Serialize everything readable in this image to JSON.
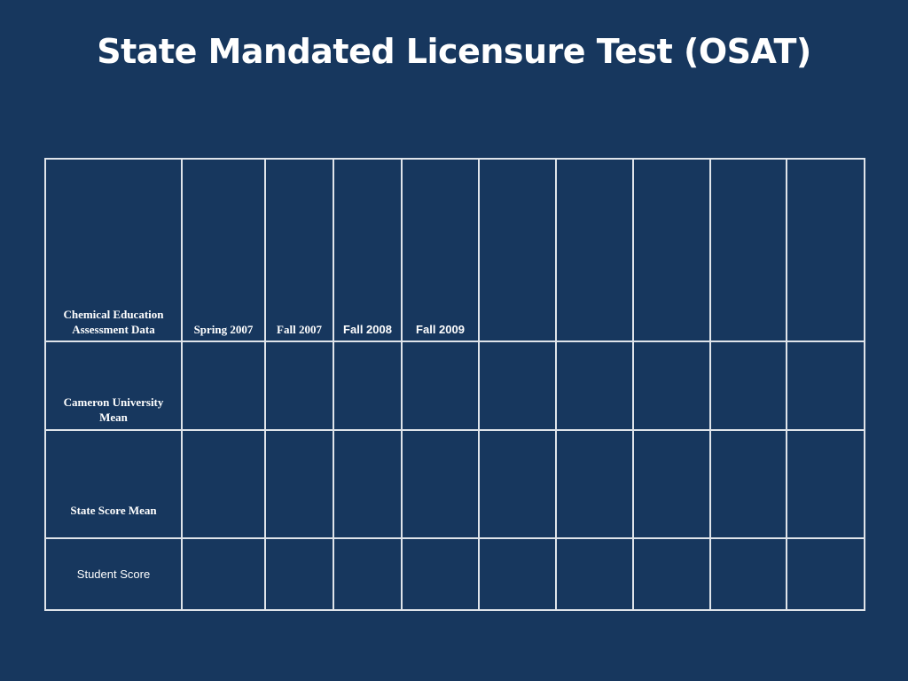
{
  "slide": {
    "title": "State Mandated Licensure Test (OSAT)"
  },
  "table": {
    "header": {
      "label": "Chemical Education Assessment Data",
      "columns": [
        "Spring 2007",
        "Fall 2007",
        "Fall 2008",
        "Fall 2009",
        "",
        "",
        "",
        "",
        ""
      ]
    },
    "rows": [
      {
        "label": "Cameron University Mean",
        "values": [
          "",
          "",
          "",
          "",
          "",
          "",
          "",
          "",
          ""
        ]
      },
      {
        "label": "State Score Mean",
        "values": [
          "",
          "",
          "",
          "",
          "",
          "",
          "",
          "",
          ""
        ]
      },
      {
        "label": "Student Score",
        "values": [
          "",
          "",
          "",
          "",
          "",
          "",
          "",
          "",
          ""
        ]
      }
    ]
  }
}
